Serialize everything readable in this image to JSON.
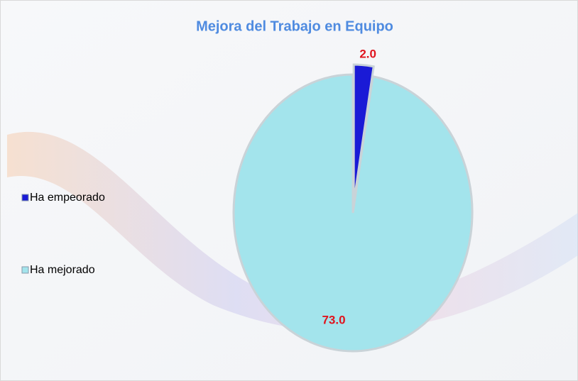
{
  "chart_data": {
    "type": "pie",
    "title": "Mejora del Trabajo en Equipo",
    "categories": [
      "Ha empeorado",
      "Ha mejorado"
    ],
    "values": [
      2,
      73
    ],
    "value_labels": [
      "2.0",
      "73.0"
    ],
    "colors": [
      "#1a1ad6",
      "#a3e4ec"
    ],
    "legend": "left"
  }
}
